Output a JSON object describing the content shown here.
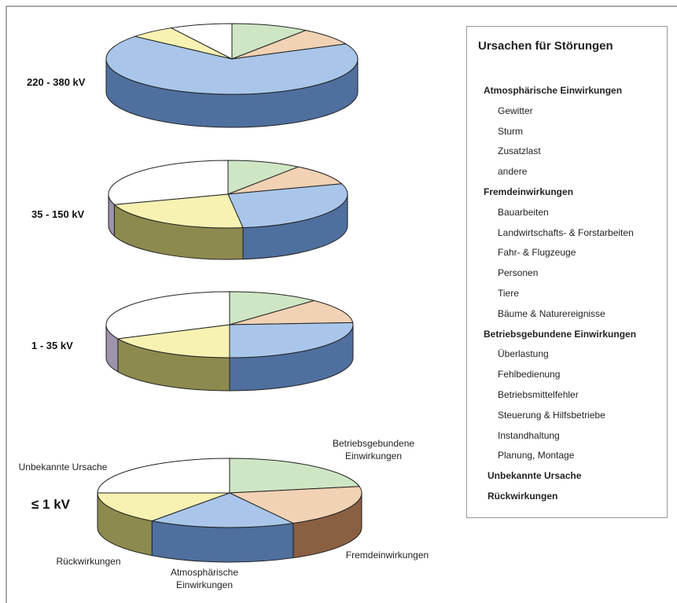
{
  "chart_data": [
    {
      "type": "pie",
      "label": "220 - 380 kV",
      "values": [
        10,
        8,
        68,
        6,
        8
      ]
    },
    {
      "type": "pie",
      "label": "35 - 150 kV",
      "values": [
        10,
        10,
        28,
        22,
        30
      ]
    },
    {
      "type": "pie",
      "label": "1 - 35 kV",
      "values": [
        12,
        12,
        26,
        18,
        32
      ]
    },
    {
      "type": "pie",
      "label": "≤ 1 kV",
      "values": [
        22,
        20,
        18,
        15,
        25
      ],
      "categories": [
        "Betriebsgebundene\nEinwirkungen",
        "Fremdeinwirkungen",
        "Atmosphärische\nEinwirkungen",
        "Rückwirkungen",
        "Unbekannte Ursache"
      ]
    }
  ],
  "colors": [
    "#cfe6c4",
    "#f2d2b4",
    "#a9c6ea",
    "#f7f2b2",
    "#ffffff"
  ],
  "side_colors": [
    "#8ea886",
    "#8a5f42",
    "#4f6f9e",
    "#8c8a4e",
    "#9d93aa"
  ],
  "legend": {
    "title": "Ursachen für Störungen",
    "groups": [
      {
        "name": "Atmosphärische Einwirkungen",
        "items": [
          "Gewitter",
          "Sturm",
          "Zusatzlast",
          "andere"
        ]
      },
      {
        "name": "Fremdeinwirkungen",
        "items": [
          "Bauarbeiten",
          "Landwirtschafts- & Forstarbeiten",
          "Fahr- & Flugzeuge",
          "Personen",
          "Tiere",
          "Bäume & Naturereignisse"
        ]
      },
      {
        "name": "Betriebsgebundene Einwirkungen",
        "items": [
          "Überlastung",
          "Fehlbedienung",
          "Betriebsmittelfehler",
          "Steuerung & Hilfsbetriebe",
          "Instandhaltung",
          "Planung, Montage"
        ]
      },
      {
        "name": "Unbekannte Ursache",
        "items": []
      },
      {
        "name": "Rückwirkungen",
        "items": []
      }
    ]
  }
}
